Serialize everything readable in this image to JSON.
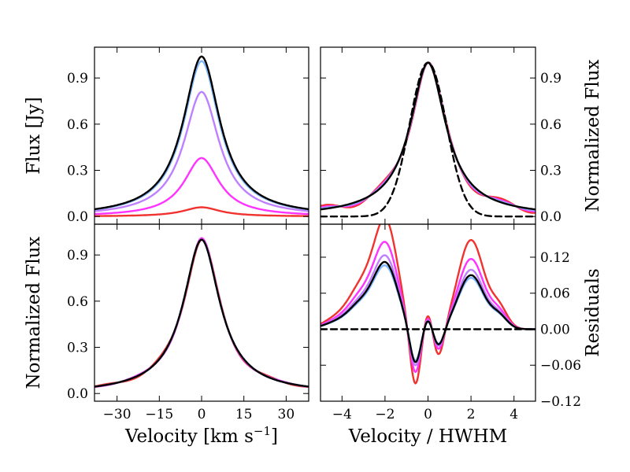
{
  "colors": {
    "red": "#f0332e",
    "magenta": "#ff33ff",
    "purple": "#bf80ff",
    "lightblue": "#80b8ff",
    "black": "#000000"
  },
  "chart_data": [
    {
      "id": "top-left",
      "type": "line",
      "xlim": [
        -38,
        38
      ],
      "ylim": [
        -0.05,
        1.1
      ],
      "xticks": [
        -30,
        -15,
        0,
        15,
        30
      ],
      "yticks": [
        0.0,
        0.3,
        0.6,
        0.9
      ],
      "yticklabels": [
        "0.0",
        "0.3",
        "0.6",
        "0.9"
      ],
      "ylabel": "Flux [Jy]",
      "ylabel_side": "left",
      "series": [
        {
          "name": "red",
          "color": "#f0332e",
          "amp": 0.06,
          "model": "lorentz",
          "w": 8.0
        },
        {
          "name": "magenta",
          "color": "#ff33ff",
          "amp": 0.38,
          "model": "lorentz",
          "w": 7.5
        },
        {
          "name": "purple",
          "color": "#bf80ff",
          "amp": 0.81,
          "model": "lorentz",
          "w": 7.6
        },
        {
          "name": "lightblue",
          "color": "#80b8ff",
          "amp": 1.01,
          "model": "lorentz",
          "w": 7.8
        },
        {
          "name": "black",
          "color": "#000000",
          "amp": 1.04,
          "model": "lorentz",
          "w": 7.9
        }
      ]
    },
    {
      "id": "top-right",
      "type": "line",
      "xlim": [
        -5,
        5
      ],
      "ylim": [
        -0.05,
        1.1
      ],
      "xticks": [
        -4,
        -2,
        0,
        2,
        4
      ],
      "yticks": [
        0.0,
        0.3,
        0.6,
        0.9
      ],
      "yticklabels": [
        "0.0",
        "0.3",
        "0.6",
        "0.9"
      ],
      "ylabel": "Normalized Flux",
      "ylabel_side": "right",
      "series": [
        {
          "name": "red",
          "color": "#f0332e",
          "wiggle": 0.025
        },
        {
          "name": "magenta",
          "color": "#ff33ff",
          "wiggle": 0.015
        },
        {
          "name": "purple",
          "color": "#bf80ff",
          "wiggle": 0.008
        },
        {
          "name": "lightblue",
          "color": "#80b8ff",
          "wiggle": 0.005
        },
        {
          "name": "black",
          "color": "#000000",
          "wiggle": 0.0
        },
        {
          "name": "gaussian-fit",
          "color": "#000000",
          "dashed": true
        }
      ]
    },
    {
      "id": "bottom-left",
      "type": "line",
      "xlim": [
        -38,
        38
      ],
      "ylim": [
        -0.05,
        1.1
      ],
      "xticks": [
        -30,
        -15,
        0,
        15,
        30
      ],
      "xticklabels": [
        "−30",
        "−15",
        "0",
        "15",
        "30"
      ],
      "yticks": [
        0.0,
        0.3,
        0.6,
        0.9
      ],
      "yticklabels": [
        "0.0",
        "0.3",
        "0.6",
        "0.9"
      ],
      "xlabel": "Velocity [km s",
      "xlabel_sup": "−1",
      "xlabel_end": "]",
      "ylabel": "Normalized Flux",
      "ylabel_side": "left",
      "series": [
        {
          "name": "red",
          "color": "#f0332e"
        },
        {
          "name": "magenta",
          "color": "#ff33ff"
        },
        {
          "name": "purple",
          "color": "#bf80ff"
        },
        {
          "name": "lightblue",
          "color": "#80b8ff"
        },
        {
          "name": "black",
          "color": "#000000"
        }
      ]
    },
    {
      "id": "bottom-right",
      "type": "line",
      "xlim": [
        -5,
        5
      ],
      "ylim": [
        -0.12,
        0.175
      ],
      "xticks": [
        -4,
        -2,
        0,
        2,
        4
      ],
      "xticklabels": [
        "−4",
        "−2",
        "0",
        "2",
        "4"
      ],
      "yticks": [
        -0.12,
        -0.06,
        0.0,
        0.06,
        0.12
      ],
      "yticklabels": [
        "−0.12",
        "−0.06",
        "0.00",
        "0.06",
        "0.12"
      ],
      "xlabel": "Velocity / HWHM",
      "ylabel": "Residuals",
      "ylabel_side": "right",
      "series": [
        {
          "name": "red",
          "color": "#f0332e",
          "scale": 1.65
        },
        {
          "name": "magenta",
          "color": "#ff33ff",
          "scale": 1.3
        },
        {
          "name": "purple",
          "color": "#bf80ff",
          "scale": 1.1
        },
        {
          "name": "lightblue",
          "color": "#80b8ff",
          "scale": 0.95
        },
        {
          "name": "black",
          "color": "#000000",
          "scale": 1.0
        },
        {
          "name": "zero-line",
          "color": "#000000",
          "dashed": true
        }
      ]
    }
  ]
}
